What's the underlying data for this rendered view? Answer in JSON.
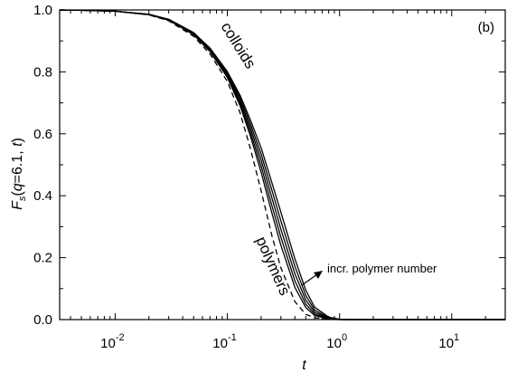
{
  "chart_data": {
    "type": "line",
    "panel_label": "(b)",
    "xlabel": "t",
    "ylabel": {
      "main": "F",
      "sub": "s",
      "args_open": "(",
      "q": "q",
      "args_mid": "=6.1, ",
      "t": "t",
      "args_close": ")"
    },
    "x_scale": "log",
    "xlim": [
      0.0032,
      30
    ],
    "ylim": [
      0.0,
      1.0
    ],
    "x_ticks": [
      {
        "value": 0.01,
        "base": "10",
        "exp": "-2"
      },
      {
        "value": 0.1,
        "base": "10",
        "exp": "-1"
      },
      {
        "value": 1,
        "base": "10",
        "exp": "0"
      },
      {
        "value": 10,
        "base": "10",
        "exp": "1"
      }
    ],
    "y_ticks": [
      "0.0",
      "0.2",
      "0.4",
      "0.6",
      "0.8",
      "1.0"
    ],
    "x": [
      0.0032,
      0.005,
      0.01,
      0.02,
      0.03,
      0.05,
      0.07,
      0.1,
      0.13,
      0.16,
      0.2,
      0.25,
      0.3,
      0.4,
      0.5,
      0.6,
      0.8,
      1.0,
      1.3,
      1.6,
      2.0,
      3.0,
      5.0,
      10.0,
      20.0,
      30.0
    ],
    "series": [
      {
        "style": "dashed",
        "values": [
          1.0,
          0.999,
          0.996,
          0.984,
          0.965,
          0.915,
          0.858,
          0.769,
          0.667,
          0.554,
          0.416,
          0.27,
          0.167,
          0.058,
          0.017,
          0.006,
          0.001,
          0.0,
          0.0,
          0.0,
          0.0,
          0.0,
          0.0,
          0.0,
          0.0,
          0.0
        ]
      },
      {
        "style": "solid",
        "values": [
          1.0,
          0.999,
          0.996,
          0.985,
          0.967,
          0.92,
          0.866,
          0.782,
          0.69,
          0.594,
          0.476,
          0.343,
          0.24,
          0.104,
          0.039,
          0.013,
          0.002,
          0.0,
          0.0,
          0.0,
          0.0,
          0.0,
          0.0,
          0.0,
          0.0,
          0.0
        ]
      },
      {
        "style": "solid",
        "values": [
          1.0,
          0.999,
          0.996,
          0.985,
          0.967,
          0.921,
          0.868,
          0.786,
          0.698,
          0.607,
          0.496,
          0.367,
          0.266,
          0.125,
          0.05,
          0.018,
          0.003,
          0.0,
          0.0,
          0.0,
          0.0,
          0.0,
          0.0,
          0.0,
          0.0,
          0.0
        ]
      },
      {
        "style": "solid",
        "values": [
          1.0,
          0.999,
          0.996,
          0.985,
          0.968,
          0.923,
          0.871,
          0.791,
          0.707,
          0.62,
          0.516,
          0.392,
          0.292,
          0.148,
          0.063,
          0.024,
          0.004,
          0.0,
          0.0,
          0.0,
          0.0,
          0.0,
          0.0,
          0.0,
          0.0,
          0.0
        ]
      },
      {
        "style": "solid",
        "values": [
          1.0,
          0.999,
          0.996,
          0.986,
          0.969,
          0.925,
          0.874,
          0.796,
          0.716,
          0.633,
          0.535,
          0.417,
          0.319,
          0.172,
          0.078,
          0.031,
          0.006,
          0.001,
          0.0,
          0.0,
          0.0,
          0.0,
          0.0,
          0.0,
          0.0,
          0.0
        ]
      },
      {
        "style": "solid",
        "values": [
          1.0,
          0.999,
          0.996,
          0.986,
          0.97,
          0.927,
          0.877,
          0.801,
          0.724,
          0.646,
          0.555,
          0.441,
          0.347,
          0.196,
          0.095,
          0.04,
          0.008,
          0.001,
          0.0,
          0.0,
          0.0,
          0.0,
          0.0,
          0.0,
          0.0,
          0.0
        ]
      }
    ],
    "annotations": {
      "colloids": "colloids",
      "polymers": "polymers",
      "arrow_label": "incr. polymer number"
    },
    "grid": false,
    "legend": "none"
  }
}
